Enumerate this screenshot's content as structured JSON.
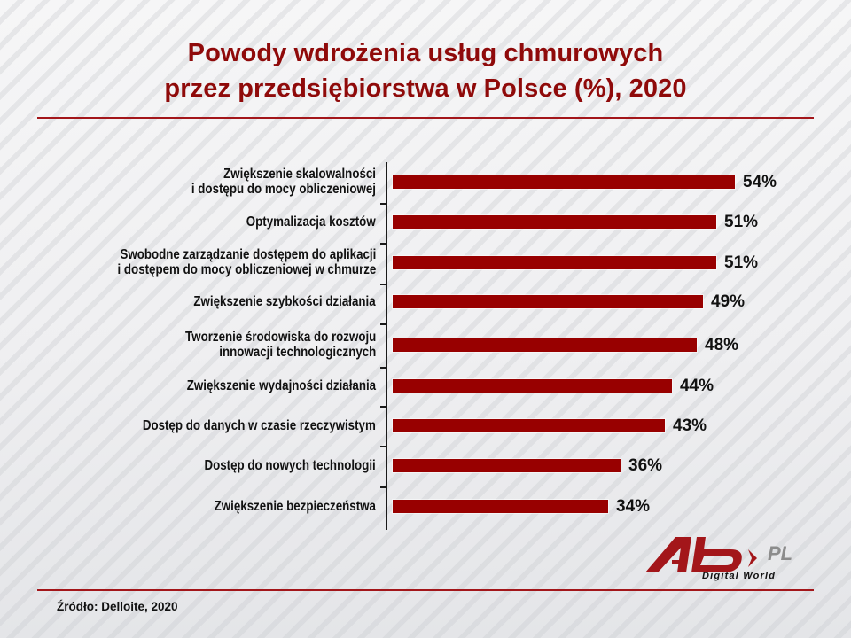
{
  "title": {
    "line1": "Powody wdrożenia usług chmurowych",
    "line2": "przez przedsiębiorstwa w Polsce (%), 2020"
  },
  "source": "Źródło: Delloite, 2020",
  "logo": {
    "mark": "Ab",
    "suffix": "PL",
    "tagline": "Digital World"
  },
  "colors": {
    "bar": "#980000",
    "title": "#8f0a0a",
    "rule": "#a3161a"
  },
  "chart_data": {
    "type": "bar",
    "orientation": "horizontal",
    "title": "Powody wdrożenia usług chmurowych przez przedsiębiorstwa w Polsce (%), 2020",
    "xlabel": "",
    "ylabel": "",
    "unit": "%",
    "grid": false,
    "legend": null,
    "xlim": [
      0,
      60
    ],
    "categories": [
      "Zwiększenie skalowalności i dostępu do mocy obliczeniowej",
      "Optymalizacja kosztów",
      "Swobodne zarządzanie dostępem do aplikacji i dostępem do mocy obliczeniowej w chmurze",
      "Zwiększenie szybkości działania",
      "Tworzenie środowiska do rozwoju innowacji technologicznych",
      "Zwiększenie wydajności działania",
      "Dostęp do danych w czasie rzeczywistym",
      "Dostęp do nowych technologii",
      "Zwiększenie bezpieczeństwa"
    ],
    "values": [
      54,
      51,
      51,
      49,
      48,
      44,
      43,
      36,
      34
    ],
    "value_labels": [
      "54%",
      "51%",
      "51%",
      "49%",
      "48%",
      "44%",
      "43%",
      "36%",
      "34%"
    ],
    "source": "Źródło: Delloite, 2020"
  },
  "rows": [
    {
      "label1": "Zwiększenie skalowalności",
      "label2": "i dostępu do mocy obliczeniowej",
      "value": 54,
      "text": "54%"
    },
    {
      "label1": "Optymalizacja kosztów",
      "label2": "",
      "value": 51,
      "text": "51%"
    },
    {
      "label1": "Swobodne zarządzanie dostępem do aplikacji",
      "label2": "i dostępem do mocy obliczeniowej w chmurze",
      "value": 51,
      "text": "51%"
    },
    {
      "label1": "Zwiększenie szybkości działania",
      "label2": "",
      "value": 49,
      "text": "49%"
    },
    {
      "label1": "Tworzenie środowiska do rozwoju",
      "label2": "innowacji technologicznych",
      "value": 48,
      "text": "48%"
    },
    {
      "label1": "Zwiększenie wydajności działania",
      "label2": "",
      "value": 44,
      "text": "44%"
    },
    {
      "label1": "Dostęp do danych w czasie rzeczywistym",
      "label2": "",
      "value": 43,
      "text": "43%"
    },
    {
      "label1": "Dostęp do nowych technologii",
      "label2": "",
      "value": 36,
      "text": "36%"
    },
    {
      "label1": "Zwiększenie bezpieczeństwa",
      "label2": "",
      "value": 34,
      "text": "34%"
    }
  ]
}
